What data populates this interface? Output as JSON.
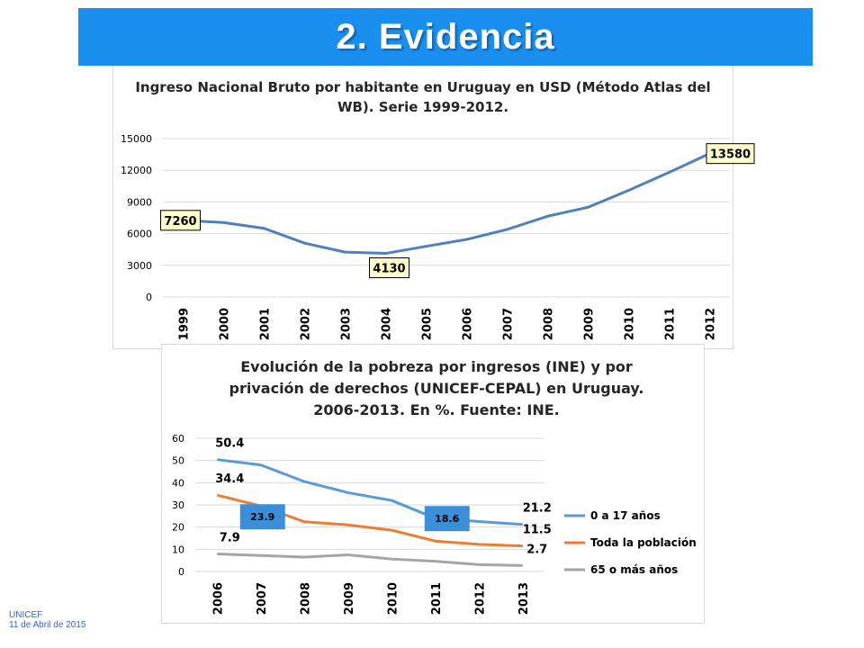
{
  "header": {
    "title": "2.    Evidencia"
  },
  "footer": {
    "org": "UNICEF",
    "date": "11 de Abril de 2015"
  },
  "colors": {
    "banner": "#1b8ff0",
    "series_main": "#4f81bd",
    "series_blue": "#5b9bd5",
    "series_orange": "#ed7d31",
    "series_gray": "#a5a5a5",
    "callout_fill": "#ffffcc",
    "box_fill": "#3b8fd9"
  },
  "chart_data": [
    {
      "type": "line",
      "title_lines": [
        "Ingreso Nacional Bruto por habitante en Uruguay en USD (Método Atlas del",
        "WB). Serie 1999-2012."
      ],
      "categories": [
        "1999",
        "2000",
        "2001",
        "2002",
        "2003",
        "2004",
        "2005",
        "2006",
        "2007",
        "2008",
        "2009",
        "2010",
        "2011",
        "2012"
      ],
      "series": [
        {
          "values": [
            7260,
            7050,
            6500,
            5100,
            4250,
            4130,
            4800,
            5450,
            6400,
            7650,
            8500,
            10100,
            11800,
            13580
          ]
        }
      ],
      "ylim": [
        0,
        15000
      ],
      "yticks": [
        "0",
        "3000",
        "6000",
        "9000",
        "12000",
        "15000"
      ],
      "grid": true,
      "legend": "none",
      "callouts": [
        {
          "text": "7260",
          "index": 0
        },
        {
          "text": "4130",
          "index": 5
        },
        {
          "text": "13580",
          "index": 13
        }
      ]
    },
    {
      "type": "line",
      "title_lines": [
        "Evolución de la pobreza por ingresos (INE) y por",
        "privación de derechos (UNICEF-CEPAL) en Uruguay.",
        "2006-2013. En %. Fuente: INE."
      ],
      "categories": [
        "2006",
        "2007",
        "2008",
        "2009",
        "2010",
        "2011",
        "2012",
        "2013"
      ],
      "series": [
        {
          "name": "0 a 17 años",
          "values": [
            50.4,
            48,
            40.5,
            35.5,
            32,
            24,
            22.5,
            21.2
          ]
        },
        {
          "name": "Toda la población",
          "values": [
            34.4,
            29.5,
            22.4,
            21,
            18.6,
            13.7,
            12.2,
            11.5
          ]
        },
        {
          "name": "65 o más años",
          "values": [
            7.9,
            7.2,
            6.5,
            7.5,
            5.6,
            4.6,
            3.1,
            2.7
          ]
        }
      ],
      "ylim": [
        0,
        60
      ],
      "yticks": [
        "0",
        "10",
        "20",
        "30",
        "40",
        "50",
        "60"
      ],
      "grid": true,
      "legend": "right",
      "data_labels": [
        {
          "text": "50.4",
          "series": 0,
          "index": 0
        },
        {
          "text": "21.2",
          "series": 0,
          "index": 7
        },
        {
          "text": "34.4",
          "series": 1,
          "index": 0
        },
        {
          "text": "11.5",
          "series": 1,
          "index": 7
        },
        {
          "text": "7.9",
          "series": 2,
          "index": 0
        },
        {
          "text": "2.7",
          "series": 2,
          "index": 7
        }
      ],
      "boxes": [
        {
          "text": "23.9"
        },
        {
          "text": "18.6"
        }
      ]
    }
  ]
}
